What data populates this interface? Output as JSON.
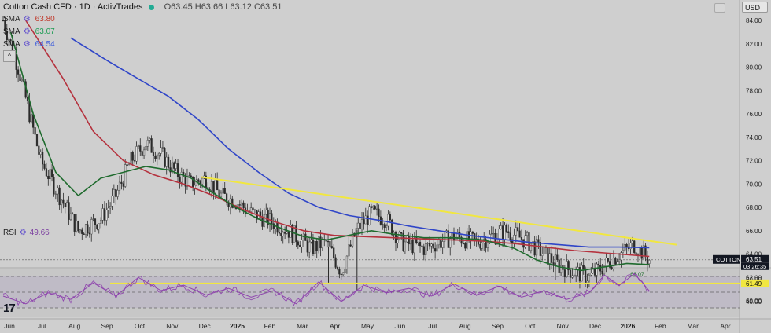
{
  "header": {
    "symbol": "Cotton Cash CFD · 1D · ActivTrades",
    "ohlc": "O63.45 H63.66 L63.12 C63.51"
  },
  "sma_rows": [
    {
      "label": "SMA",
      "value": "63.80",
      "color": "#c0392b"
    },
    {
      "label": "SMA",
      "value": "63.07",
      "color": "#2ecc71"
    },
    {
      "label": "SMA",
      "value": "64.54",
      "color": "#3b5bdb"
    }
  ],
  "rsi": {
    "label": "RSI",
    "value": "49.66",
    "color": "#7b3fa0"
  },
  "currency": "USD",
  "price_axis": {
    "ticks": [
      "84.00",
      "82.00",
      "80.00",
      "78.00",
      "76.00",
      "74.00",
      "72.00",
      "70.00",
      "68.00",
      "66.00",
      "64.00",
      "62.00",
      "60.00"
    ],
    "ticks_values": [
      84,
      82,
      80,
      78,
      76,
      74,
      72,
      70,
      68,
      66,
      64,
      62,
      60
    ],
    "current_label": "63.51",
    "countdown": "03:26:35",
    "symbol_tag": "COTTON",
    "level_label": "61.49",
    "level_value": 61.49,
    "sma_tag": "63.07"
  },
  "rsi_axis": {
    "ticks": [
      "60.00",
      "40.00"
    ],
    "ticks_values": [
      60,
      40
    ]
  },
  "time_axis": {
    "labels": [
      "Jun",
      "Jul",
      "Aug",
      "Sep",
      "Oct",
      "Nov",
      "Dec",
      "2025",
      "Feb",
      "Mar",
      "Apr",
      "May",
      "Jun",
      "Jul",
      "Aug",
      "Sep",
      "Oct",
      "Nov",
      "Dec",
      "2026",
      "Feb",
      "Mar",
      "Apr"
    ],
    "bold": [
      "2025",
      "2026"
    ]
  },
  "chart_data": {
    "type": "candlestick",
    "y_range": [
      59.5,
      86
    ],
    "resistance_line": {
      "from": [
        "Dec 2024",
        70.6
      ],
      "to": [
        "Feb 2026",
        64.8
      ],
      "color": "#f1e740"
    },
    "support_line": {
      "value": 61.49,
      "color": "#f1e740"
    },
    "anchors": {
      "close": [
        [
          0,
          84
        ],
        [
          2,
          80
        ],
        [
          5,
          72
        ],
        [
          10,
          66
        ],
        [
          13,
          67
        ],
        [
          15,
          69
        ],
        [
          17,
          72
        ],
        [
          19,
          73.5
        ],
        [
          21,
          72.5
        ],
        [
          23,
          71
        ],
        [
          25,
          70
        ],
        [
          27,
          70.5
        ],
        [
          29,
          69
        ],
        [
          31,
          68.5
        ],
        [
          33,
          67.5
        ],
        [
          35,
          67
        ],
        [
          38,
          66
        ],
        [
          41,
          64.5
        ],
        [
          43,
          65
        ],
        [
          45,
          62.5
        ],
        [
          47,
          66
        ],
        [
          49,
          67.5
        ],
        [
          51,
          67
        ],
        [
          53,
          65
        ],
        [
          56,
          64.5
        ],
        [
          58,
          65
        ],
        [
          60,
          65.5
        ],
        [
          63,
          65
        ],
        [
          65,
          65.5
        ],
        [
          67,
          66
        ],
        [
          70,
          65
        ],
        [
          72,
          64
        ],
        [
          74,
          63
        ],
        [
          76,
          62.5
        ],
        [
          78,
          62
        ],
        [
          80,
          63
        ],
        [
          82,
          64
        ],
        [
          84,
          64.8
        ],
        [
          85,
          64.2
        ],
        [
          86,
          63.5
        ]
      ],
      "sma_red": [
        [
          3,
          84
        ],
        [
          8,
          79
        ],
        [
          12,
          74.5
        ],
        [
          16,
          72
        ],
        [
          20,
          70.8
        ],
        [
          24,
          70
        ],
        [
          28,
          69
        ],
        [
          32,
          67.8
        ],
        [
          36,
          66.8
        ],
        [
          40,
          66
        ],
        [
          44,
          65.6
        ],
        [
          48,
          65.5
        ],
        [
          52,
          65.4
        ],
        [
          56,
          65.3
        ],
        [
          60,
          65.2
        ],
        [
          64,
          65.1
        ],
        [
          68,
          64.9
        ],
        [
          72,
          64.6
        ],
        [
          76,
          64.3
        ],
        [
          80,
          64.1
        ],
        [
          84,
          63.9
        ],
        [
          86,
          63.8
        ]
      ],
      "sma_green": [
        [
          1,
          83
        ],
        [
          4,
          76
        ],
        [
          7,
          71
        ],
        [
          10,
          69
        ],
        [
          13,
          70.5
        ],
        [
          16,
          71
        ],
        [
          19,
          71.5
        ],
        [
          22,
          71.2
        ],
        [
          25,
          70.5
        ],
        [
          28,
          69.2
        ],
        [
          31,
          68
        ],
        [
          34,
          67
        ],
        [
          37,
          66.2
        ],
        [
          40,
          65.5
        ],
        [
          43,
          65.2
        ],
        [
          46,
          65.6
        ],
        [
          49,
          66
        ],
        [
          52,
          65.7
        ],
        [
          56,
          65.4
        ],
        [
          60,
          65.4
        ],
        [
          64,
          65.2
        ],
        [
          68,
          64.5
        ],
        [
          71,
          63.5
        ],
        [
          74,
          62.9
        ],
        [
          77,
          62.6
        ],
        [
          80,
          62.9
        ],
        [
          83,
          63.2
        ],
        [
          86,
          63.1
        ]
      ],
      "sma_blue": [
        [
          9,
          82.5
        ],
        [
          14,
          80.5
        ],
        [
          18,
          79
        ],
        [
          22,
          77.5
        ],
        [
          26,
          75.5
        ],
        [
          30,
          73
        ],
        [
          34,
          71
        ],
        [
          38,
          69.2
        ],
        [
          42,
          68
        ],
        [
          46,
          67.3
        ],
        [
          50,
          66.9
        ],
        [
          54,
          66.4
        ],
        [
          58,
          66
        ],
        [
          62,
          65.6
        ],
        [
          66,
          65.3
        ],
        [
          70,
          65
        ],
        [
          74,
          64.8
        ],
        [
          78,
          64.6
        ],
        [
          82,
          64.6
        ],
        [
          86,
          64.54
        ]
      ],
      "rsi": [
        [
          0,
          45
        ],
        [
          3,
          38
        ],
        [
          6,
          48
        ],
        [
          9,
          42
        ],
        [
          12,
          57
        ],
        [
          15,
          45
        ],
        [
          18,
          62
        ],
        [
          21,
          50
        ],
        [
          24,
          55
        ],
        [
          27,
          46
        ],
        [
          30,
          52
        ],
        [
          33,
          44
        ],
        [
          36,
          50
        ],
        [
          39,
          38
        ],
        [
          42,
          58
        ],
        [
          45,
          40
        ],
        [
          48,
          55
        ],
        [
          51,
          48
        ],
        [
          54,
          52
        ],
        [
          57,
          45
        ],
        [
          60,
          56
        ],
        [
          63,
          46
        ],
        [
          66,
          54
        ],
        [
          69,
          44
        ],
        [
          72,
          50
        ],
        [
          75,
          42
        ],
        [
          78,
          48
        ],
        [
          80,
          64
        ],
        [
          82,
          55
        ],
        [
          84,
          65
        ],
        [
          85,
          58
        ],
        [
          86,
          49.66
        ]
      ]
    }
  }
}
